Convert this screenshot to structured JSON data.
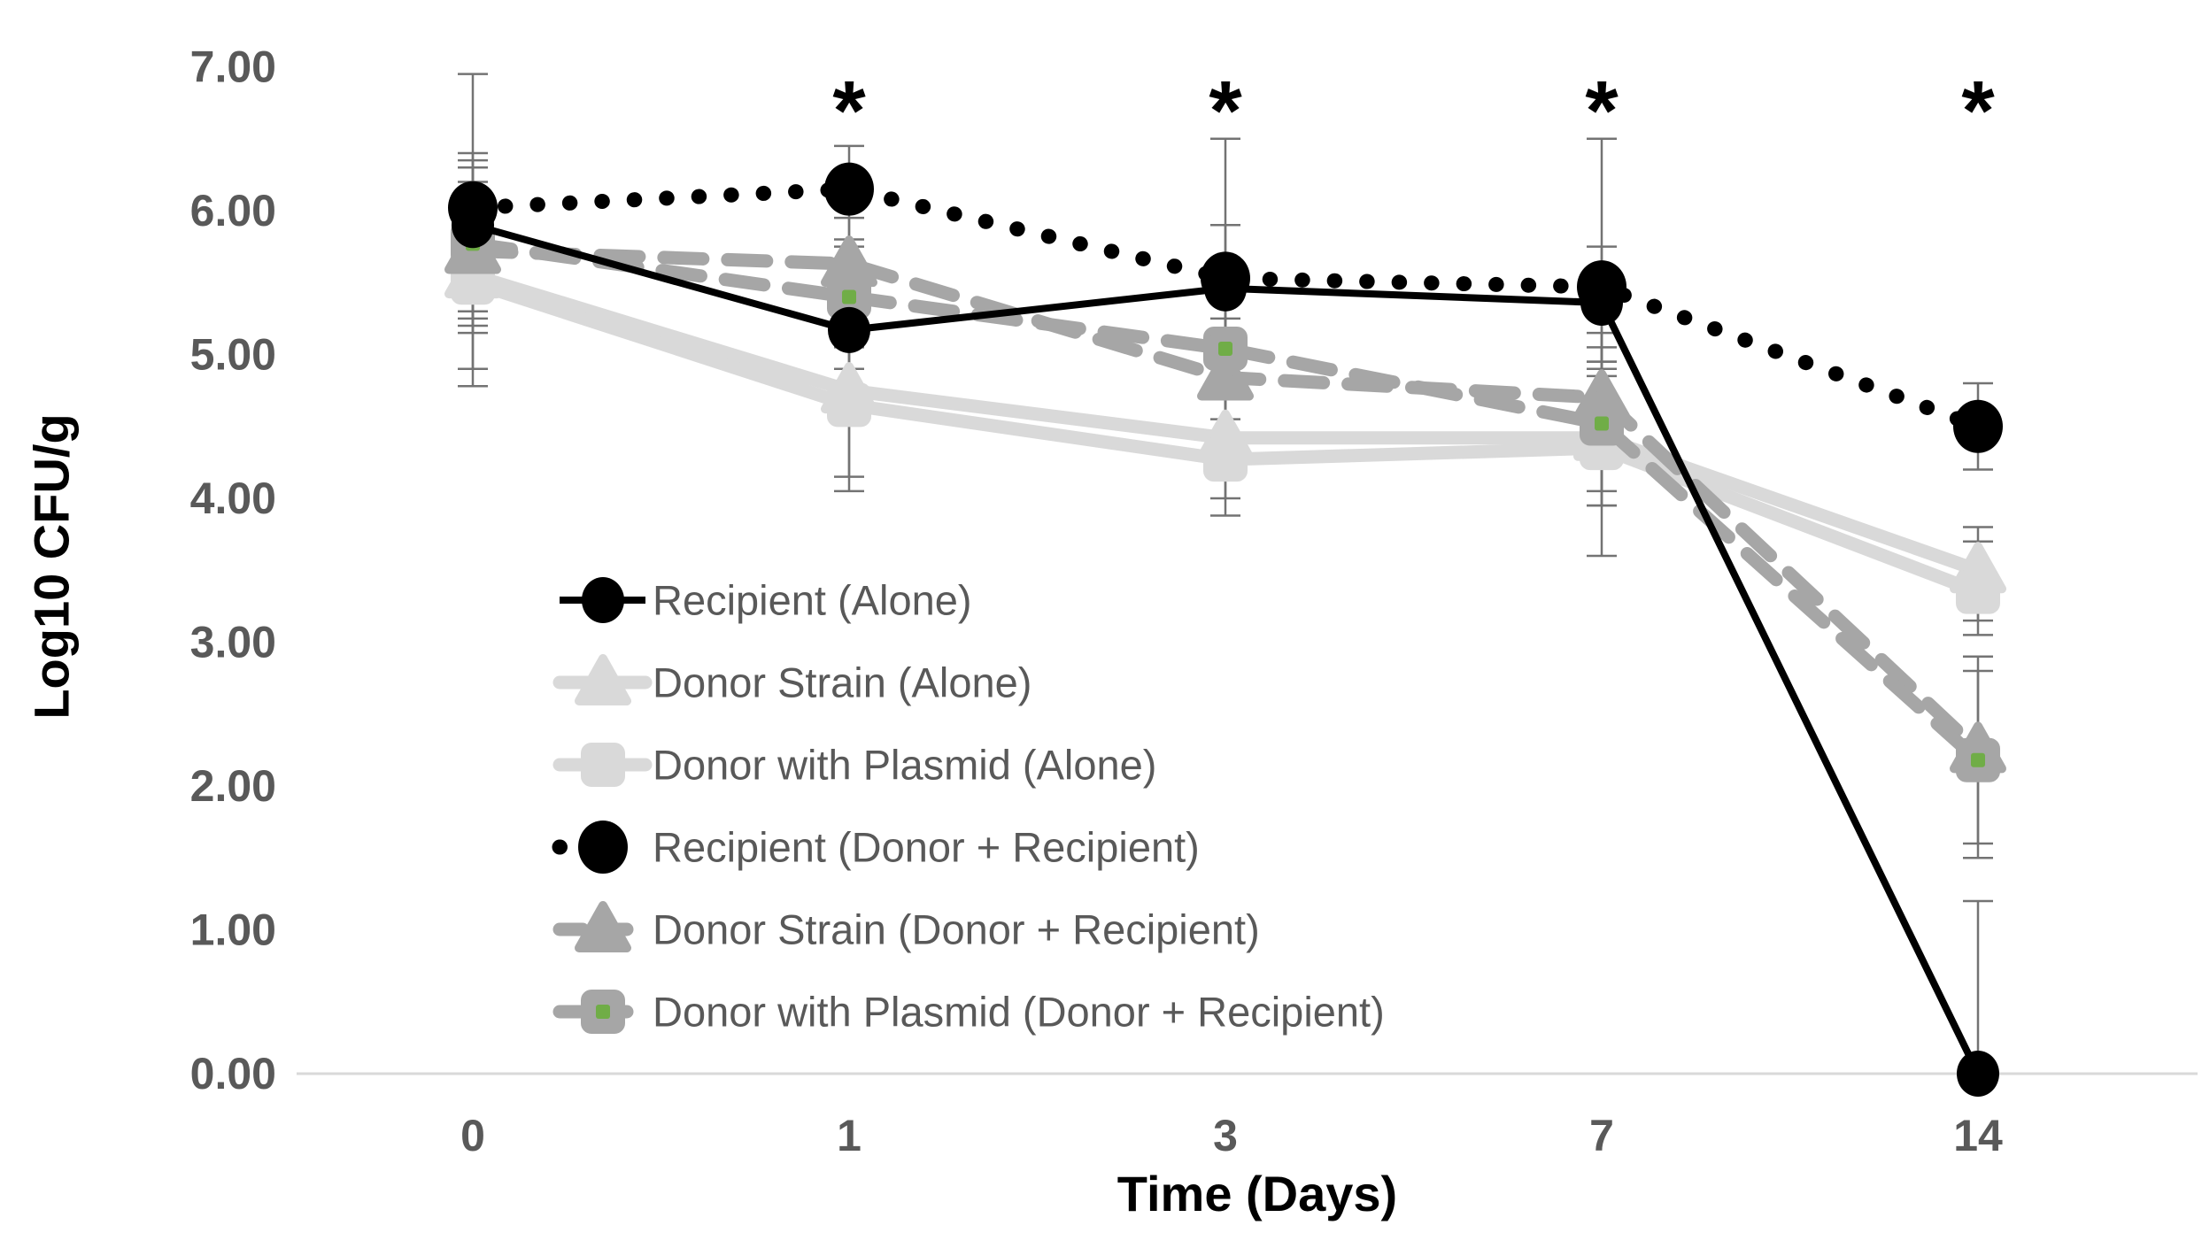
{
  "chart_data": {
    "type": "line",
    "title": "",
    "xlabel": "Time (Days)",
    "ylabel": "Log10 CFU/g",
    "categories": [
      "0",
      "1",
      "3",
      "7",
      "14"
    ],
    "ylim": [
      0,
      7
    ],
    "y_tick_labels": [
      "0.00",
      "1.00",
      "2.00",
      "3.00",
      "4.00",
      "5.00",
      "6.00",
      "7.00"
    ],
    "grid": "zero-baseline-only",
    "legend_position": "inside-left-middle",
    "significance_marks": {
      "symbol": "*",
      "categories": [
        "1",
        "3",
        "7",
        "14"
      ]
    },
    "colors": {
      "black": "#000000",
      "light_gray": "#D9D9D9",
      "medium_gray": "#A6A6A6",
      "green_accent": "#70AD47",
      "tick_text": "#595959",
      "legend_text": "#595959",
      "gridline": "#D9D9D9",
      "error_bar": "#737373"
    },
    "series": [
      {
        "name": "Recipient (Alone)",
        "marker": "circle",
        "line": "solid",
        "color_key": "black",
        "z": 5,
        "values": [
          5.9,
          5.17,
          5.46,
          5.36,
          0.0
        ],
        "err_lo": [
          5.15,
          4.9,
          4.95,
          4.9,
          0.0
        ],
        "err_hi": [
          6.4,
          5.45,
          5.9,
          5.75,
          1.2
        ]
      },
      {
        "name": "Donor Strain (Alone)",
        "marker": "triangle",
        "line": "solid",
        "color_key": "light_gray",
        "z": 1,
        "values": [
          5.55,
          4.75,
          4.42,
          4.42,
          3.5
        ],
        "err_lo": [
          4.9,
          4.15,
          4.0,
          3.95,
          3.15
        ],
        "err_hi": [
          6.2,
          5.35,
          4.85,
          4.95,
          3.8
        ]
      },
      {
        "name": "Donor with Plasmid (Alone)",
        "marker": "square",
        "line": "solid",
        "color_key": "light_gray",
        "z": 2,
        "values": [
          5.5,
          4.65,
          4.27,
          4.35,
          3.35
        ],
        "err_lo": [
          4.78,
          4.05,
          3.88,
          3.6,
          3.05
        ],
        "err_hi": [
          6.1,
          5.25,
          4.7,
          4.85,
          3.7
        ]
      },
      {
        "name": "Recipient (Donor + Recipient)",
        "marker": "circle",
        "line": "dotted",
        "color_key": "black",
        "z": 6,
        "values": [
          6.02,
          6.15,
          5.53,
          5.47,
          4.5
        ],
        "err_lo": [
          5.3,
          5.75,
          5.0,
          4.95,
          4.2
        ],
        "err_hi": [
          6.95,
          6.45,
          6.5,
          6.5,
          4.8
        ]
      },
      {
        "name": "Donor Strain (Donor + Recipient)",
        "marker": "triangle",
        "line": "dashed",
        "color_key": "medium_gray",
        "z": 3,
        "values": [
          5.72,
          5.63,
          4.84,
          4.7,
          2.25
        ],
        "err_lo": [
          5.25,
          5.3,
          4.35,
          4.05,
          1.6
        ],
        "err_hi": [
          6.35,
          5.95,
          5.25,
          5.15,
          2.9
        ]
      },
      {
        "name": "Donor with Plasmid (Donor + Recipient)",
        "marker": "square-green",
        "line": "dashed",
        "color_key": "medium_gray",
        "z": 4,
        "values": [
          5.77,
          5.4,
          5.04,
          4.52,
          2.18
        ],
        "err_lo": [
          5.2,
          5.05,
          4.55,
          3.95,
          1.5
        ],
        "err_hi": [
          6.3,
          5.8,
          5.45,
          5.05,
          2.8
        ]
      }
    ]
  }
}
